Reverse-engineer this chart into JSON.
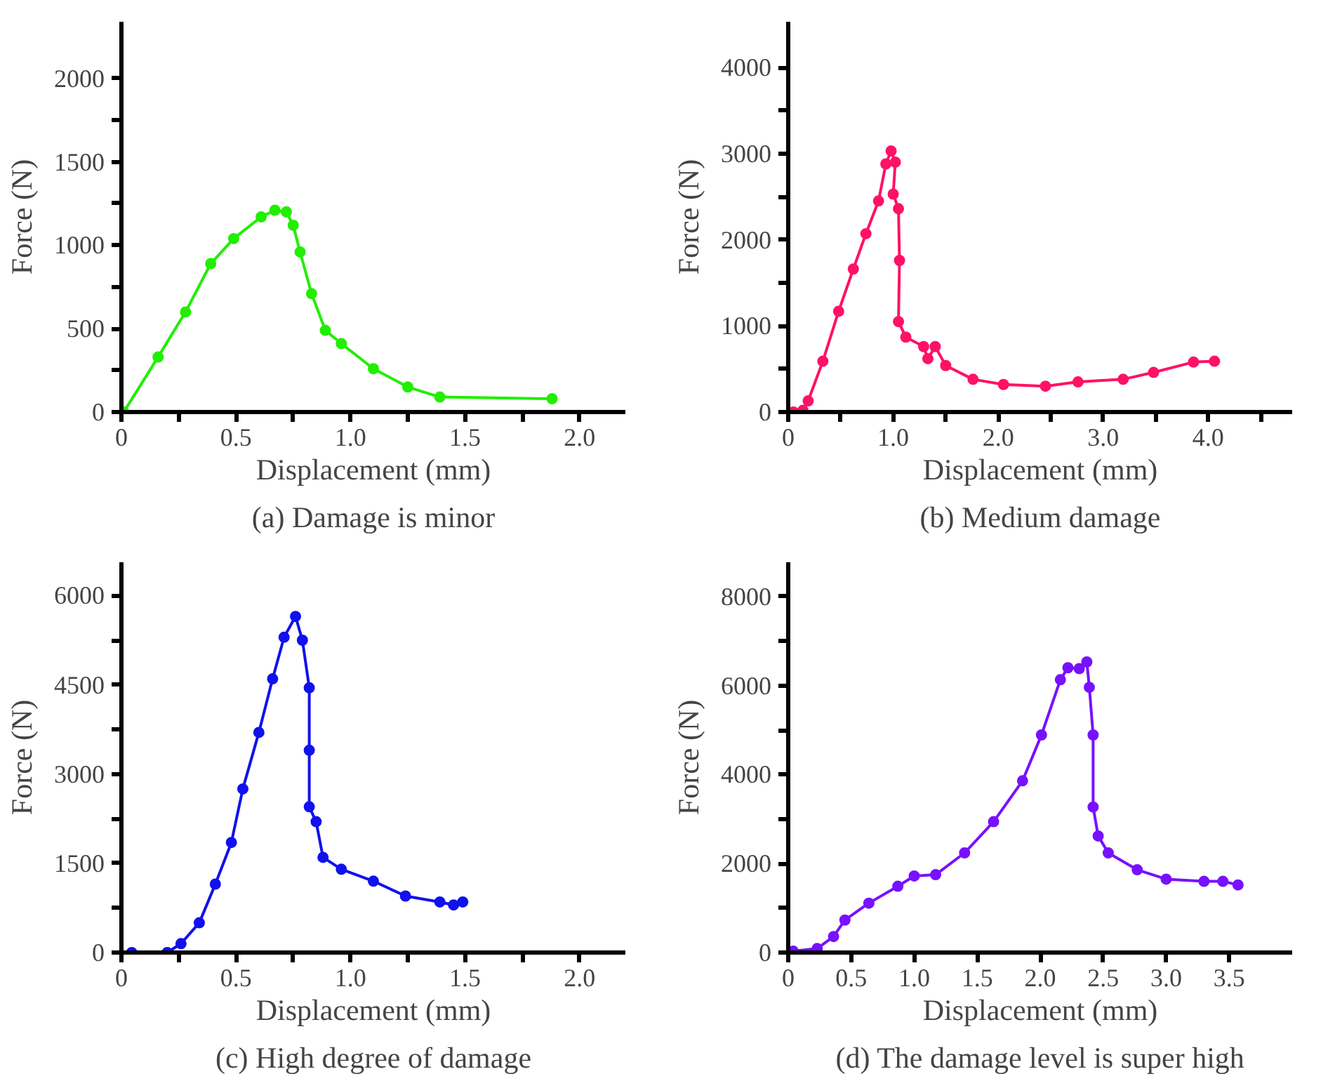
{
  "chart_data": [
    {
      "type": "line",
      "title": "(a) Damage is minor",
      "xlabel": "Displacement (mm)",
      "ylabel": "Force (N)",
      "marker": "circle",
      "grid": false,
      "xlim": [
        0,
        2.2
      ],
      "ylim": [
        0,
        2340
      ],
      "xticks": [
        0,
        {
          "value": 0.25,
          "label": null
        },
        0.5,
        {
          "value": 0.75,
          "label": null
        },
        {
          "value": 1,
          "label": "1.0"
        },
        {
          "value": 1.25,
          "label": null
        },
        1.5,
        {
          "value": 1.75,
          "label": null
        },
        {
          "value": 2,
          "label": "2.0"
        }
      ],
      "yticks": [
        0,
        {
          "value": 250,
          "label": null
        },
        500,
        {
          "value": 750,
          "label": null
        },
        1000,
        {
          "value": 1250,
          "label": null
        },
        1500,
        {
          "value": 1750,
          "label": null
        },
        2000
      ],
      "series": [
        {
          "color": "#22ee00",
          "x": [
            0.01,
            0.16,
            0.28,
            0.39,
            0.49,
            0.61,
            0.67,
            0.72,
            0.75,
            0.78,
            0.83,
            0.89,
            0.96,
            1.1,
            1.25,
            1.39,
            1.88
          ],
          "values": [
            0,
            330,
            600,
            890,
            1040,
            1170,
            1210,
            1200,
            1120,
            960,
            710,
            490,
            410,
            260,
            150,
            90,
            80
          ]
        }
      ]
    },
    {
      "type": "line",
      "title": "(b) Medium damage",
      "xlabel": "Displacement (mm)",
      "ylabel": "Force (N)",
      "marker": "circle",
      "grid": false,
      "xlim": [
        0,
        4.8
      ],
      "ylim": [
        0,
        4530
      ],
      "xticks": [
        0,
        {
          "value": 0.5,
          "label": null
        },
        {
          "value": 1,
          "label": "1.0"
        },
        {
          "value": 1.5,
          "label": null
        },
        {
          "value": 2,
          "label": "2.0"
        },
        {
          "value": 2.5,
          "label": null
        },
        {
          "value": 3,
          "label": "3.0"
        },
        {
          "value": 3.5,
          "label": null
        },
        {
          "value": 4,
          "label": "4.0"
        },
        {
          "value": 4.5,
          "label": null
        }
      ],
      "yticks": [
        0,
        {
          "value": 500,
          "label": null
        },
        1000,
        {
          "value": 1500,
          "label": null
        },
        2000,
        {
          "value": 2500,
          "label": null
        },
        3000,
        {
          "value": 3500,
          "label": null
        },
        4000
      ],
      "series": [
        {
          "color": "#ff1166",
          "x": [
            0.05,
            0.14,
            0.19,
            0.33,
            0.48,
            0.62,
            0.74,
            0.86,
            0.93,
            0.98,
            1.02,
            1.0,
            1.05,
            1.06,
            1.05,
            1.12,
            1.29,
            1.33,
            1.4,
            1.5,
            1.76,
            2.05,
            2.45,
            2.76,
            3.19,
            3.48,
            3.86,
            4.06
          ],
          "values": [
            0,
            20,
            130,
            590,
            1170,
            1660,
            2070,
            2450,
            2880,
            3030,
            2900,
            2530,
            2360,
            1760,
            1050,
            870,
            760,
            620,
            760,
            540,
            380,
            320,
            300,
            350,
            380,
            460,
            580,
            590
          ]
        }
      ]
    },
    {
      "type": "line",
      "title": "(c) High degree of damage",
      "xlabel": "Displacement (mm)",
      "ylabel": "Force (N)",
      "marker": "circle",
      "grid": false,
      "xlim": [
        0,
        2.2
      ],
      "ylim": [
        0,
        6560
      ],
      "xticks": [
        0,
        {
          "value": 0.25,
          "label": null
        },
        0.5,
        {
          "value": 0.75,
          "label": null
        },
        {
          "value": 1,
          "label": "1.0"
        },
        {
          "value": 1.25,
          "label": null
        },
        1.5,
        {
          "value": 1.75,
          "label": null
        },
        {
          "value": 2,
          "label": "2.0"
        }
      ],
      "yticks": [
        0,
        {
          "value": 750,
          "label": null
        },
        1500,
        {
          "value": 2250,
          "label": null
        },
        3000,
        {
          "value": 3750,
          "label": null
        },
        4500,
        {
          "value": 5250,
          "label": null
        },
        6000
      ],
      "series": [
        {
          "color": "#1111ee",
          "x": [
            0.045,
            0.2,
            0.26,
            0.34,
            0.41,
            0.48,
            0.53,
            0.6,
            0.66,
            0.71,
            0.76,
            0.79,
            0.82,
            0.82,
            0.82,
            0.85,
            0.88,
            0.96,
            1.1,
            1.24,
            1.39,
            1.45,
            1.49
          ],
          "values": [
            0,
            0,
            150,
            500,
            1150,
            1850,
            2750,
            3700,
            4600,
            5300,
            5650,
            5250,
            4450,
            3400,
            2450,
            2200,
            1600,
            1400,
            1200,
            950,
            850,
            800,
            850
          ]
        }
      ]
    },
    {
      "type": "line",
      "title": "(d) The damage level is super high",
      "xlabel": "Displacement (mm)",
      "ylabel": "Force (N)",
      "marker": "circle",
      "grid": false,
      "xlim": [
        0,
        4.0
      ],
      "ylim": [
        0,
        8770
      ],
      "xticks": [
        0,
        0.5,
        {
          "value": 1,
          "label": "1.0"
        },
        1.5,
        {
          "value": 2,
          "label": "2.0"
        },
        2.5,
        {
          "value": 3,
          "label": "3.0"
        },
        3.5
      ],
      "yticks": [
        0,
        {
          "value": 1000,
          "label": null
        },
        2000,
        {
          "value": 3000,
          "label": null
        },
        4000,
        {
          "value": 5000,
          "label": null
        },
        6000,
        {
          "value": 7000,
          "label": null
        },
        8000
      ],
      "series": [
        {
          "color": "#7711ff",
          "x": [
            0.04,
            0.23,
            0.36,
            0.45,
            0.64,
            0.87,
            1.0,
            1.17,
            1.4,
            1.63,
            1.86,
            2.01,
            2.16,
            2.22,
            2.31,
            2.37,
            2.39,
            2.42,
            2.42,
            2.46,
            2.54,
            2.77,
            3.0,
            3.3,
            3.45,
            3.57
          ],
          "values": [
            30,
            90,
            360,
            730,
            1110,
            1490,
            1720,
            1750,
            2240,
            2940,
            3860,
            4890,
            6130,
            6400,
            6380,
            6530,
            5960,
            4890,
            3270,
            2620,
            2240,
            1860,
            1650,
            1600,
            1600,
            1520
          ]
        }
      ]
    }
  ]
}
